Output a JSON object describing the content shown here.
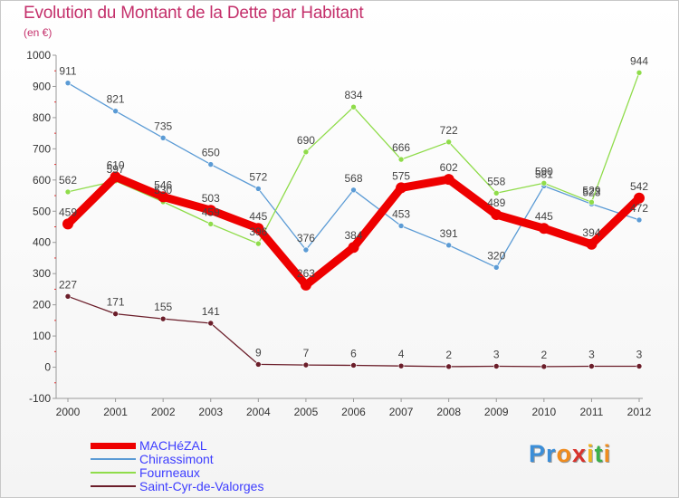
{
  "title": "Evolution du Montant de la Dette par Habitant",
  "subtitle": "(en €)",
  "logo": {
    "letters": [
      "P",
      "r",
      "o",
      "x",
      "i",
      "t",
      "i"
    ],
    "colors": [
      "#3b8ed8",
      "#3b8ed8",
      "#f08c1e",
      "#d8322c",
      "#f0b41e",
      "#3bb04a",
      "#f08c1e"
    ]
  },
  "chart_data": {
    "type": "line",
    "categories": [
      "2000",
      "2001",
      "2002",
      "2003",
      "2004",
      "2005",
      "2006",
      "2007",
      "2008",
      "2009",
      "2010",
      "2011",
      "2012"
    ],
    "ylim": [
      -100,
      1000
    ],
    "yticks": [
      -100,
      0,
      100,
      200,
      300,
      400,
      500,
      600,
      700,
      800,
      900,
      1000
    ],
    "grid": false,
    "legend_position": "bottom-left",
    "series": [
      {
        "name": "Chirassimont",
        "color": "#5b9bd5",
        "width": 1.3,
        "values": [
          911,
          821,
          735,
          650,
          572,
          376,
          568,
          453,
          391,
          320,
          581,
          523,
          472
        ]
      },
      {
        "name": "Fourneaux",
        "color": "#8fdc4a",
        "width": 1.3,
        "values": [
          562,
          597,
          530,
          459,
          396,
          690,
          834,
          666,
          722,
          558,
          590,
          529,
          944
        ]
      },
      {
        "name": "Saint-Cyr-de-Valorges",
        "color": "#6b1e2a",
        "width": 1.3,
        "values": [
          227,
          171,
          155,
          141,
          9,
          7,
          6,
          4,
          2,
          3,
          2,
          3,
          3
        ]
      },
      {
        "name": "MACHéZAL",
        "color": "#ee0000",
        "width": 9,
        "values": [
          459,
          610,
          546,
          503,
          445,
          263,
          384,
          575,
          602,
          489,
          445,
          394,
          542
        ]
      }
    ],
    "legend_order": [
      "MACHéZAL",
      "Chirassimont",
      "Fourneaux",
      "Saint-Cyr-de-Valorges"
    ]
  }
}
